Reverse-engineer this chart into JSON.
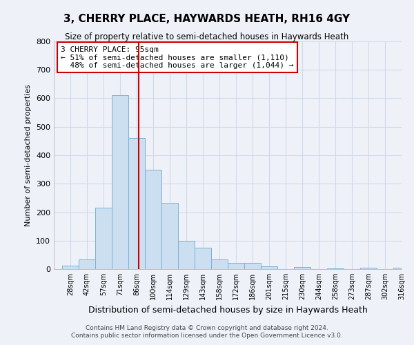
{
  "title": "3, CHERRY PLACE, HAYWARDS HEATH, RH16 4GY",
  "subtitle": "Size of property relative to semi-detached houses in Haywards Heath",
  "xlabel": "Distribution of semi-detached houses by size in Haywards Heath",
  "ylabel": "Number of semi-detached properties",
  "categories": [
    "28sqm",
    "42sqm",
    "57sqm",
    "71sqm",
    "86sqm",
    "100sqm",
    "114sqm",
    "129sqm",
    "143sqm",
    "158sqm",
    "172sqm",
    "186sqm",
    "201sqm",
    "215sqm",
    "230sqm",
    "244sqm",
    "258sqm",
    "273sqm",
    "287sqm",
    "302sqm",
    "316sqm"
  ],
  "values": [
    13,
    35,
    215,
    610,
    460,
    350,
    232,
    100,
    75,
    33,
    22,
    22,
    10,
    0,
    8,
    0,
    2,
    0,
    5,
    0,
    5
  ],
  "bar_color": "#ccdff0",
  "bar_edge_color": "#7ab0d4",
  "property_label": "3 CHERRY PLACE: 95sqm",
  "pct_smaller": 51,
  "pct_larger": 48,
  "n_smaller": 1110,
  "n_larger": 1044,
  "vline_color": "#cc0000",
  "annotation_box_edge_color": "#cc0000",
  "ylim": [
    0,
    800
  ],
  "yticks": [
    0,
    100,
    200,
    300,
    400,
    500,
    600,
    700,
    800
  ],
  "grid_color": "#d0d8e8",
  "background_color": "#eef2f8",
  "footer1": "Contains HM Land Registry data © Crown copyright and database right 2024.",
  "footer2": "Contains public sector information licensed under the Open Government Licence v3.0."
}
